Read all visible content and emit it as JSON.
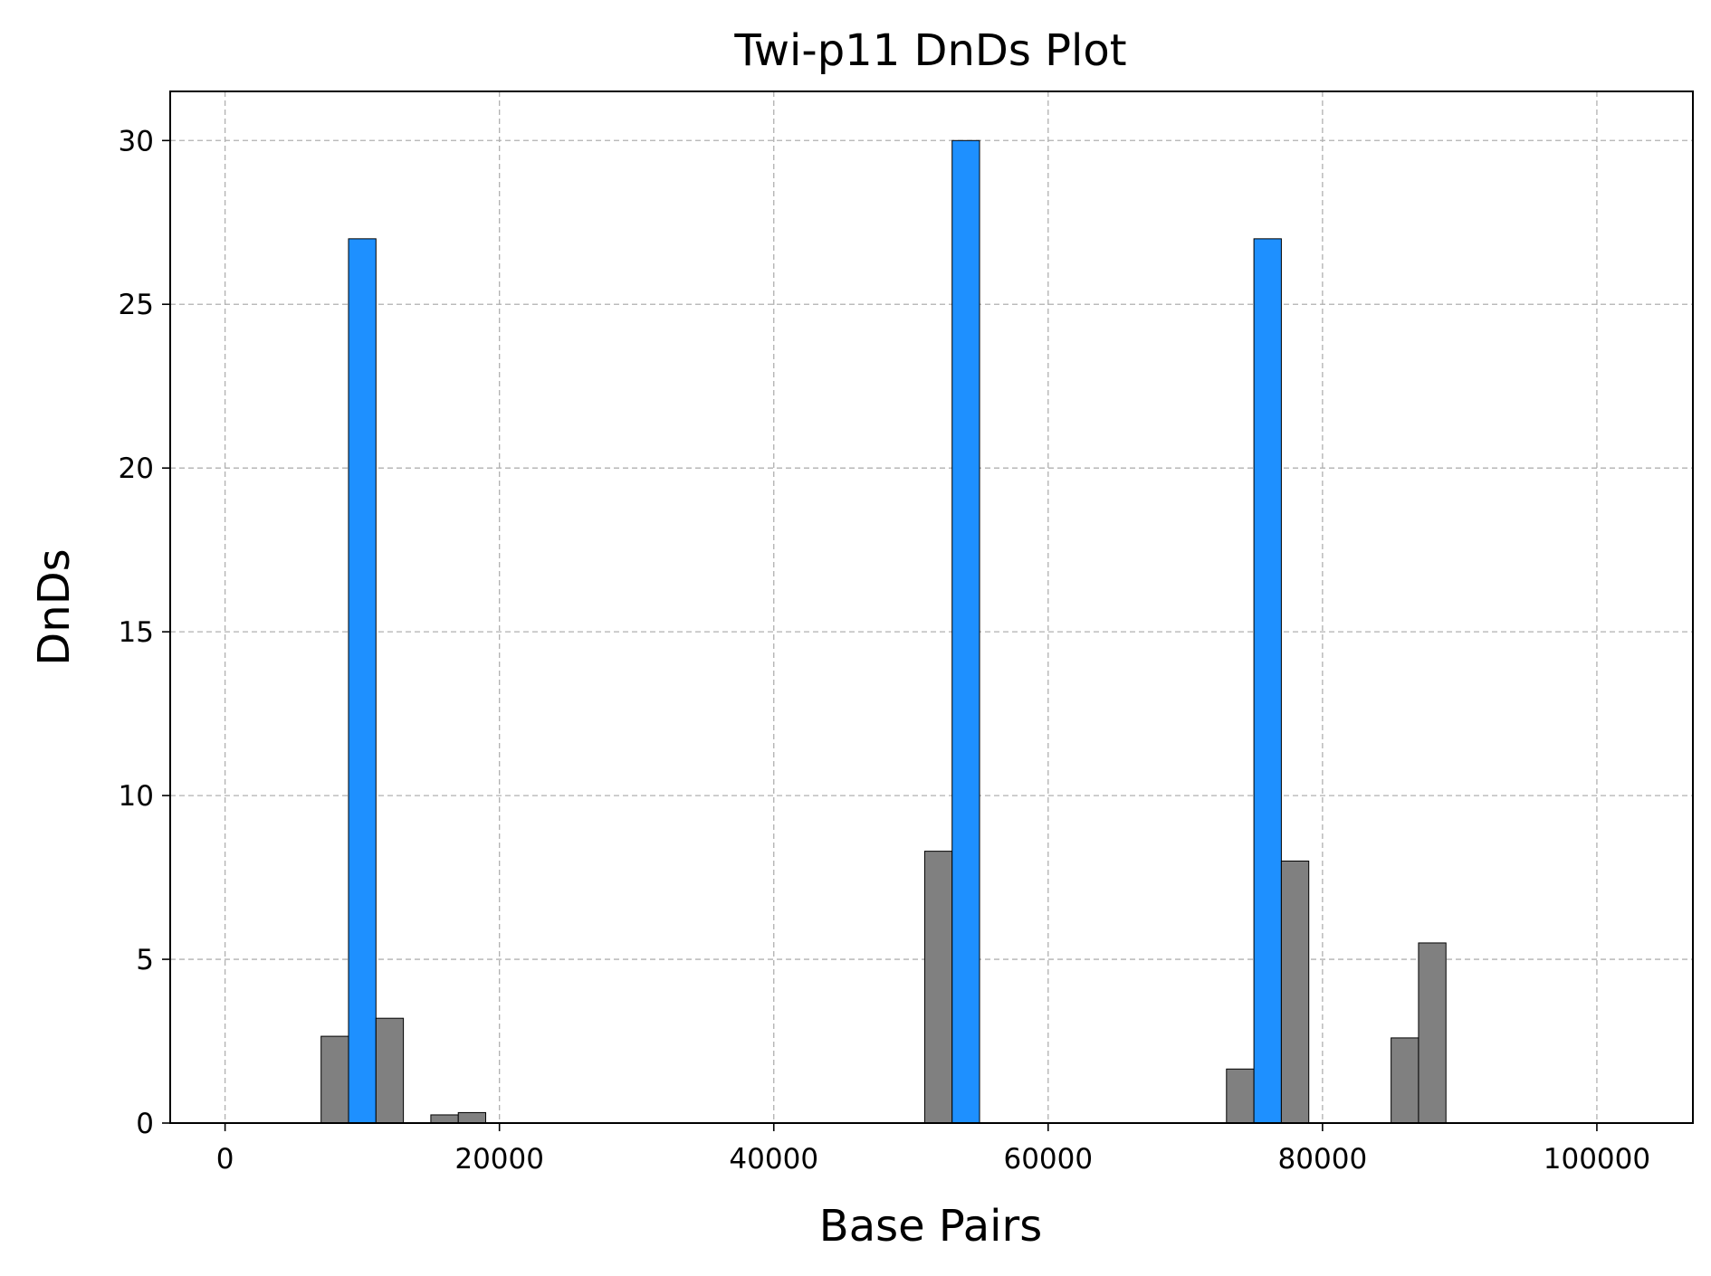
{
  "chart_data": {
    "type": "bar",
    "title": "Twi-p11 DnDs Plot",
    "xlabel": "Base Pairs",
    "ylabel": "DnDs",
    "xlim": [
      -4000,
      107000
    ],
    "ylim": [
      0,
      31.5
    ],
    "x_ticks": [
      0,
      20000,
      40000,
      60000,
      80000,
      100000
    ],
    "y_ticks": [
      0,
      5,
      10,
      15,
      20,
      25,
      30
    ],
    "grid": true,
    "bar_width": 2000,
    "colors": {
      "highlight": "#1e90ff",
      "normal": "#808080"
    },
    "bars": [
      {
        "x": 9000,
        "value": 2.65,
        "highlight": false
      },
      {
        "x": 11000,
        "value": 27.0,
        "highlight": true
      },
      {
        "x": 13000,
        "value": 3.2,
        "highlight": false
      },
      {
        "x": 17000,
        "value": 0.25,
        "highlight": false
      },
      {
        "x": 19000,
        "value": 0.32,
        "highlight": false
      },
      {
        "x": 53000,
        "value": 8.3,
        "highlight": false
      },
      {
        "x": 55000,
        "value": 30.0,
        "highlight": true
      },
      {
        "x": 75000,
        "value": 1.65,
        "highlight": false
      },
      {
        "x": 77000,
        "value": 27.0,
        "highlight": true
      },
      {
        "x": 79000,
        "value": 8.0,
        "highlight": false
      },
      {
        "x": 87000,
        "value": 2.6,
        "highlight": false
      },
      {
        "x": 89000,
        "value": 5.5,
        "highlight": false
      }
    ]
  }
}
